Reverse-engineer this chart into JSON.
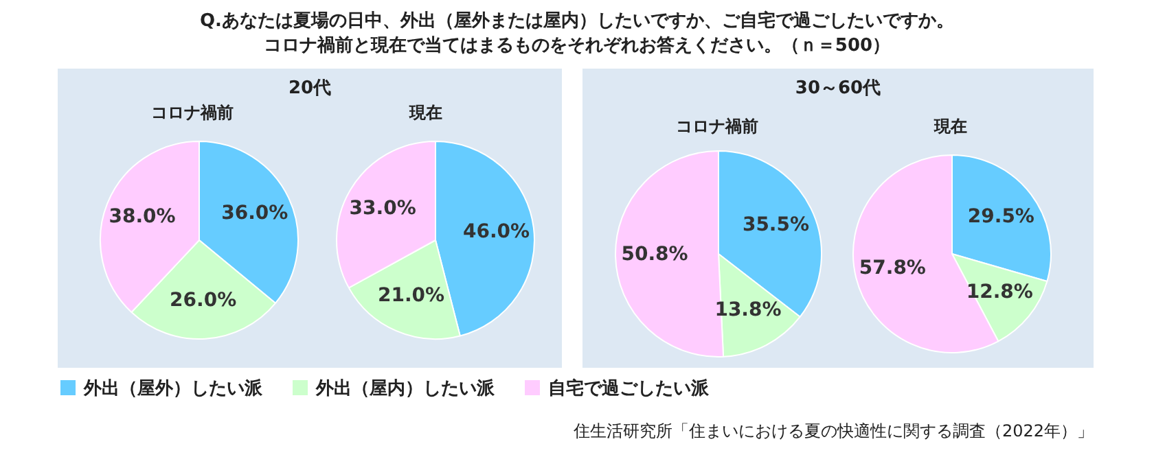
{
  "chart_data": [
    {
      "type": "pie",
      "title": "コロナ禍前",
      "subtitle": "20代",
      "categories": [
        "外出（屋外）したい派",
        "外出（屋内）したい派",
        "自宅で過ごしたい派"
      ],
      "values": [
        36,
        26,
        38
      ],
      "value_labels": [
        "36.0%",
        "26.0%",
        "38.0%"
      ],
      "colors": [
        "#66ccff",
        "#ccffcc",
        "#ffccff"
      ],
      "legend": "bottom",
      "annotations": [
        "Q.あなたは夏場の日中、外出（屋外または屋内）したいですか、ご自宅で過ごしたいですか。",
        "コロナ禍前と現在で当てはまるものをそれぞれお答えください。（ｎ＝500）",
        "住生活研究所「住まいにおける夏の快適性に関する調査（2022年）」"
      ]
    },
    {
      "type": "pie",
      "title": "現在",
      "categories": [
        null,
        null,
        null
      ],
      "values": [
        46,
        21,
        33
      ],
      "value_labels": [
        "46.0%",
        "21.0%",
        "33.0%"
      ],
      "colors": [
        "#66ccff",
        "#ccffcc",
        "#ffccff"
      ]
    },
    {
      "type": "pie",
      "title": "コロナ禍前",
      "subtitle": "30～60代",
      "categories": [
        null,
        null,
        null
      ],
      "values": [
        35.5,
        13.8,
        50.8
      ],
      "value_labels": [
        "35.5%",
        "13.8%",
        "50.8%"
      ],
      "colors": [
        "#66ccff",
        "#ccffcc",
        "#ffccff"
      ]
    },
    {
      "type": "pie",
      "title": "現在",
      "categories": [
        null,
        null,
        null
      ],
      "values": [
        29.5,
        12.8,
        57.8
      ],
      "value_labels": [
        "29.5%",
        "12.8%",
        "57.8%"
      ],
      "colors": [
        "#66ccff",
        "#ccffcc",
        "#ffccff"
      ]
    }
  ]
}
